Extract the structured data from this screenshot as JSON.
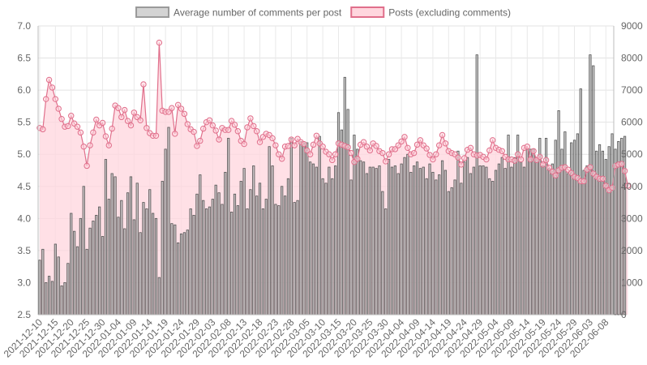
{
  "chart_data": {
    "type": "bar",
    "legend": {
      "placement": "top-center",
      "items": [
        {
          "label": "Average number of comments per post",
          "fill": "#d3d3d3",
          "stroke": "#9a9a9a"
        },
        {
          "label": "Posts (excluding comments)",
          "fill": "#ffd6de",
          "stroke": "#e06f8b"
        }
      ]
    },
    "x_start_date": "2021-12-10",
    "x_days": 183,
    "x_tick_labels": [
      "2021-12-10",
      "2021-12-15",
      "2021-12-20",
      "2021-12-25",
      "2021-12-30",
      "2022-01-04",
      "2022-01-09",
      "2022-01-14",
      "2022-01-19",
      "2022-01-24",
      "2022-01-29",
      "2022-02-03",
      "2022-02-08",
      "2022-02-13",
      "2022-02-18",
      "2022-02-23",
      "2022-02-28",
      "2022-03-05",
      "2022-03-10",
      "2022-03-15",
      "2022-03-20",
      "2022-03-25",
      "2022-03-30",
      "2022-04-04",
      "2022-04-09",
      "2022-04-14",
      "2022-04-19",
      "2022-04-24",
      "2022-04-29",
      "2022-05-04",
      "2022-05-09",
      "2022-05-14",
      "2022-05-19",
      "2022-05-24",
      "2022-05-29",
      "2022-06-03",
      "2022-06-08"
    ],
    "y_left": {
      "ylim": [
        2.5,
        7.0
      ],
      "ticks": [
        "2.5",
        "3.0",
        "3.5",
        "4.0",
        "4.5",
        "5.0",
        "5.5",
        "6.0",
        "6.5",
        "7.0"
      ]
    },
    "y_right": {
      "ylim": [
        0,
        9000
      ],
      "ticks": [
        "0",
        "1000",
        "2000",
        "3000",
        "4000",
        "5000",
        "6000",
        "7000",
        "8000",
        "9000"
      ]
    },
    "series": [
      {
        "name": "Average number of comments per post",
        "axis": "left",
        "type": "bar",
        "values": [
          3.35,
          3.52,
          3.0,
          3.1,
          3.02,
          3.6,
          3.4,
          2.95,
          3.0,
          3.3,
          4.08,
          3.8,
          3.56,
          4.0,
          4.5,
          3.52,
          3.85,
          3.96,
          4.05,
          4.18,
          3.72,
          4.92,
          4.3,
          4.7,
          4.65,
          4.02,
          4.28,
          3.84,
          4.4,
          4.65,
          3.98,
          4.55,
          3.78,
          4.25,
          4.15,
          4.45,
          4.08,
          4.0,
          3.08,
          4.58,
          5.08,
          5.42,
          3.92,
          3.9,
          3.62,
          3.76,
          3.78,
          3.82,
          4.15,
          4.05,
          4.38,
          4.68,
          4.28,
          4.15,
          4.18,
          4.3,
          4.52,
          4.4,
          4.22,
          4.72,
          5.25,
          4.1,
          4.38,
          4.2,
          4.58,
          4.78,
          4.15,
          4.45,
          4.82,
          4.35,
          4.55,
          4.15,
          4.3,
          5.12,
          4.82,
          4.22,
          4.2,
          4.5,
          4.35,
          4.62,
          5.25,
          4.25,
          4.28,
          5.2,
          5.18,
          5.18,
          4.88,
          4.85,
          4.8,
          5.28,
          4.62,
          4.55,
          4.8,
          4.62,
          4.82,
          5.65,
          5.38,
          6.2,
          5.7,
          4.6,
          5.3,
          5.08,
          4.9,
          4.88,
          4.7,
          4.8,
          4.8,
          4.78,
          4.82,
          4.42,
          4.15,
          4.92,
          4.8,
          4.82,
          4.7,
          4.85,
          4.95,
          5.0,
          4.72,
          4.82,
          4.88,
          4.78,
          4.8,
          4.62,
          4.85,
          4.72,
          4.6,
          4.68,
          4.9,
          4.75,
          4.42,
          4.48,
          4.6,
          5.05,
          4.55,
          4.88,
          4.95,
          4.7,
          4.8,
          6.55,
          4.82,
          4.82,
          4.8,
          4.62,
          4.58,
          4.75,
          4.85,
          4.95,
          4.78,
          5.3,
          4.8,
          4.95,
          5.3,
          4.88,
          4.8,
          5.08,
          5.08,
          5.08,
          4.95,
          5.25,
          4.82,
          5.25,
          4.78,
          4.85,
          5.22,
          5.68,
          5.08,
          5.35,
          4.7,
          5.18,
          5.22,
          5.32,
          6.02,
          4.75,
          4.82,
          6.55,
          6.38,
          5.05,
          5.15,
          5.05,
          4.92,
          5.12,
          5.32,
          5.08,
          5.2,
          5.25,
          5.28
        ]
      },
      {
        "name": "Posts (excluding comments)",
        "axis": "right",
        "type": "area",
        "values": [
          5820,
          5780,
          6720,
          7320,
          7080,
          6720,
          6420,
          6100,
          5860,
          5880,
          6200,
          5960,
          5860,
          5680,
          5240,
          4640,
          5280,
          5680,
          6080,
          5900,
          5980,
          5560,
          5280,
          5800,
          6520,
          6440,
          6160,
          6380,
          6040,
          5900,
          6300,
          6160,
          6060,
          7180,
          5820,
          5660,
          5580,
          5580,
          8480,
          6360,
          6320,
          6320,
          6440,
          5640,
          6540,
          6420,
          6260,
          5940,
          5780,
          5700,
          5260,
          5420,
          5800,
          6000,
          6060,
          5900,
          5740,
          5460,
          5820,
          5760,
          5760,
          6040,
          5920,
          5720,
          5420,
          5320,
          5840,
          6120,
          5880,
          5720,
          5380,
          5540,
          5640,
          5600,
          5500,
          5280,
          5000,
          4860,
          5240,
          5260,
          5460,
          5280,
          5480,
          5380,
          5320,
          5120,
          5000,
          5300,
          5580,
          5340,
          5240,
          5080,
          5000,
          4820,
          5000,
          5340,
          5300,
          5260,
          5220,
          5040,
          4760,
          4860,
          5300,
          5380,
          5240,
          5120,
          5340,
          5260,
          5100,
          5040,
          4780,
          5000,
          5160,
          5160,
          5280,
          5400,
          5540,
          5200,
          5000,
          5040,
          5300,
          5440,
          5280,
          5180,
          4980,
          4840,
          5000,
          5280,
          5600,
          5340,
          5100,
          5040,
          5000,
          4900,
          4680,
          4880,
          5140,
          5200,
          5000,
          4960,
          4980,
          4920,
          4840,
          5120,
          5440,
          5200,
          5140,
          5100,
          4920,
          4840,
          4840,
          4800,
          5000,
          4840,
          5200,
          5240,
          4840,
          5100,
          4820,
          4920,
          4680,
          4820,
          4580,
          4460,
          4340,
          4500,
          4580,
          4600,
          4520,
          4420,
          4300,
          4260,
          4160,
          4160,
          4520,
          4600,
          4400,
          4300,
          4240,
          4240,
          4020,
          3880,
          3960,
          4640,
          4680,
          4700,
          4480,
          4020
        ]
      }
    ]
  }
}
